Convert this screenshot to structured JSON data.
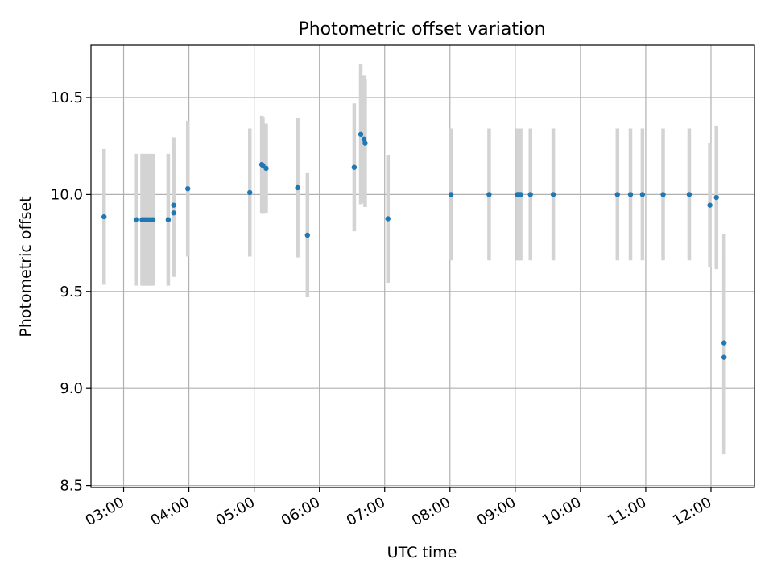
{
  "chart_data": {
    "type": "scatter",
    "title": "Photometric offset variation",
    "xlabel": "UTC time",
    "ylabel": "Photometric offset",
    "x_ticks": [
      "03:00",
      "04:00",
      "05:00",
      "06:00",
      "07:00",
      "08:00",
      "09:00",
      "10:00",
      "11:00",
      "12:00"
    ],
    "y_ticks": [
      "8.5",
      "9.0",
      "9.5",
      "10.0",
      "10.5"
    ],
    "xlim": [
      "02:30",
      "12:40"
    ],
    "ylim": [
      8.49,
      10.77
    ],
    "grid": true,
    "colors": {
      "marker": "#1f77b4",
      "errorbar": "#d3d3d3",
      "grid": "#b0b0b0"
    },
    "points": [
      {
        "t": "02:42",
        "y": 9.885,
        "err": 0.35
      },
      {
        "t": "03:12",
        "y": 9.87,
        "err": 0.34
      },
      {
        "t": "03:17",
        "y": 9.87,
        "err": 0.34
      },
      {
        "t": "03:19",
        "y": 9.87,
        "err": 0.34
      },
      {
        "t": "03:21",
        "y": 9.87,
        "err": 0.34
      },
      {
        "t": "03:23",
        "y": 9.87,
        "err": 0.34
      },
      {
        "t": "03:25",
        "y": 9.87,
        "err": 0.34
      },
      {
        "t": "03:27",
        "y": 9.87,
        "err": 0.34
      },
      {
        "t": "03:41",
        "y": 9.87,
        "err": 0.34
      },
      {
        "t": "03:46",
        "y": 9.905,
        "err": 0.33
      },
      {
        "t": "03:46",
        "y": 9.945,
        "err": 0.35
      },
      {
        "t": "03:59",
        "y": 10.03,
        "err": 0.35
      },
      {
        "t": "04:56",
        "y": 10.01,
        "err": 0.33
      },
      {
        "t": "05:07",
        "y": 10.155,
        "err": 0.25
      },
      {
        "t": "05:08",
        "y": 10.15,
        "err": 0.25
      },
      {
        "t": "05:11",
        "y": 10.135,
        "err": 0.23
      },
      {
        "t": "05:40",
        "y": 10.035,
        "err": 0.36
      },
      {
        "t": "05:49",
        "y": 9.79,
        "err": 0.32
      },
      {
        "t": "06:32",
        "y": 10.14,
        "err": 0.33
      },
      {
        "t": "06:38",
        "y": 10.31,
        "err": 0.36
      },
      {
        "t": "06:41",
        "y": 10.285,
        "err": 0.33
      },
      {
        "t": "06:42",
        "y": 10.265,
        "err": 0.33
      },
      {
        "t": "07:03",
        "y": 9.875,
        "err": 0.33
      },
      {
        "t": "08:01",
        "y": 10.0,
        "err": 0.34
      },
      {
        "t": "08:36",
        "y": 10.0,
        "err": 0.34
      },
      {
        "t": "09:02",
        "y": 10.0,
        "err": 0.34
      },
      {
        "t": "09:03",
        "y": 10.0,
        "err": 0.34
      },
      {
        "t": "09:04",
        "y": 10.0,
        "err": 0.34
      },
      {
        "t": "09:05",
        "y": 10.0,
        "err": 0.34
      },
      {
        "t": "09:14",
        "y": 10.0,
        "err": 0.34
      },
      {
        "t": "09:35",
        "y": 10.0,
        "err": 0.34
      },
      {
        "t": "10:34",
        "y": 10.0,
        "err": 0.34
      },
      {
        "t": "10:46",
        "y": 10.0,
        "err": 0.34
      },
      {
        "t": "10:57",
        "y": 10.0,
        "err": 0.34
      },
      {
        "t": "11:16",
        "y": 10.0,
        "err": 0.34
      },
      {
        "t": "11:40",
        "y": 10.0,
        "err": 0.34
      },
      {
        "t": "11:59",
        "y": 9.945,
        "err": 0.32
      },
      {
        "t": "12:05",
        "y": 9.985,
        "err": 0.37
      },
      {
        "t": "12:12",
        "y": 9.235,
        "err": 0.56
      },
      {
        "t": "12:12",
        "y": 9.16,
        "err": 0.5
      }
    ]
  }
}
